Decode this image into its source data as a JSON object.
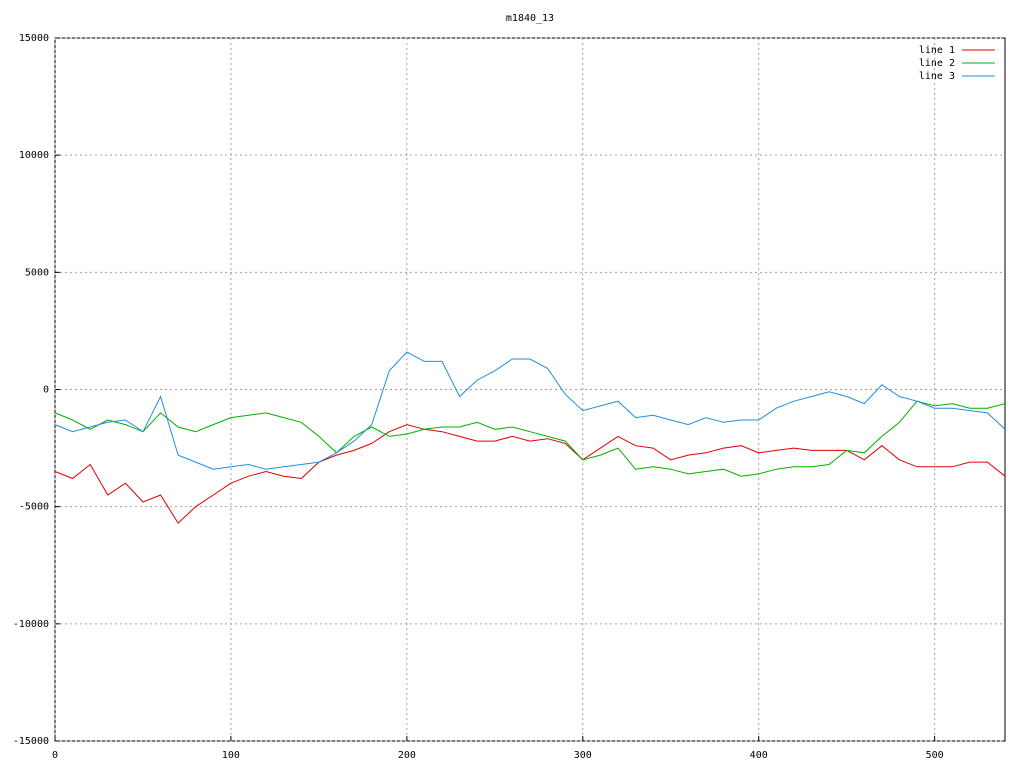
{
  "chart_data": {
    "type": "line",
    "title": "m1840_13",
    "x": [
      0,
      10,
      20,
      30,
      40,
      50,
      60,
      70,
      80,
      90,
      100,
      110,
      120,
      130,
      140,
      150,
      160,
      170,
      180,
      190,
      200,
      210,
      220,
      230,
      240,
      250,
      260,
      270,
      280,
      290,
      300,
      310,
      320,
      330,
      340,
      350,
      360,
      370,
      380,
      390,
      400,
      410,
      420,
      430,
      440,
      450,
      460,
      470,
      480,
      490,
      500,
      510,
      520,
      530,
      540
    ],
    "series": [
      {
        "name": "line 1",
        "color": "#e00000",
        "values": [
          -3500,
          -3800,
          -3200,
          -4500,
          -4000,
          -4800,
          -4500,
          -5700,
          -5000,
          -4500,
          -4000,
          -3700,
          -3500,
          -3700,
          -3800,
          -3100,
          -2800,
          -2600,
          -2300,
          -1800,
          -1500,
          -1700,
          -1800,
          -2000,
          -2200,
          -2200,
          -2000,
          -2200,
          -2100,
          -2300,
          -3000,
          -2500,
          -2000,
          -2400,
          -2500,
          -3000,
          -2800,
          -2700,
          -2500,
          -2400,
          -2700,
          -2600,
          -2500,
          -2600,
          -2600,
          -2600,
          -3000,
          -2400,
          -3000,
          -3300,
          -3300,
          -3300,
          -3100,
          -3100,
          -3700
        ]
      },
      {
        "name": "line 2",
        "color": "#00b000",
        "values": [
          -1000,
          -1300,
          -1700,
          -1300,
          -1500,
          -1800,
          -1000,
          -1600,
          -1800,
          -1500,
          -1200,
          -1100,
          -1000,
          -1200,
          -1400,
          -2000,
          -2700,
          -2000,
          -1600,
          -2000,
          -1900,
          -1700,
          -1600,
          -1600,
          -1400,
          -1700,
          -1600,
          -1800,
          -2000,
          -2200,
          -3000,
          -2800,
          -2500,
          -3400,
          -3300,
          -3400,
          -3600,
          -3500,
          -3400,
          -3700,
          -3600,
          -3400,
          -3300,
          -3300,
          -3200,
          -2600,
          -2700,
          -2000,
          -1400,
          -500,
          -700,
          -600,
          -800,
          -800,
          -600
        ]
      },
      {
        "name": "line 3",
        "color": "#1f8fe0",
        "values": [
          -1500,
          -1800,
          -1600,
          -1400,
          -1300,
          -1800,
          -300,
          -2800,
          -3100,
          -3400,
          -3300,
          -3200,
          -3400,
          -3300,
          -3200,
          -3100,
          -2700,
          -2200,
          -1500,
          800,
          1600,
          1200,
          1200,
          -300,
          400,
          800,
          1300,
          1300,
          900,
          -200,
          -900,
          -700,
          -500,
          -1200,
          -1100,
          -1300,
          -1500,
          -1200,
          -1400,
          -1300,
          -1300,
          -800,
          -500,
          -300,
          -100,
          -300,
          -600,
          200,
          -300,
          -500,
          -800,
          -800,
          -900,
          -1000,
          -1700
        ]
      }
    ],
    "xlim": [
      0,
      540
    ],
    "xticks": [
      0,
      100,
      200,
      300,
      400,
      500
    ],
    "ylim": [
      -15000,
      15000
    ],
    "yticks": [
      -15000,
      -10000,
      -5000,
      0,
      5000,
      10000,
      15000
    ],
    "grid": true,
    "legend": "top-right"
  }
}
